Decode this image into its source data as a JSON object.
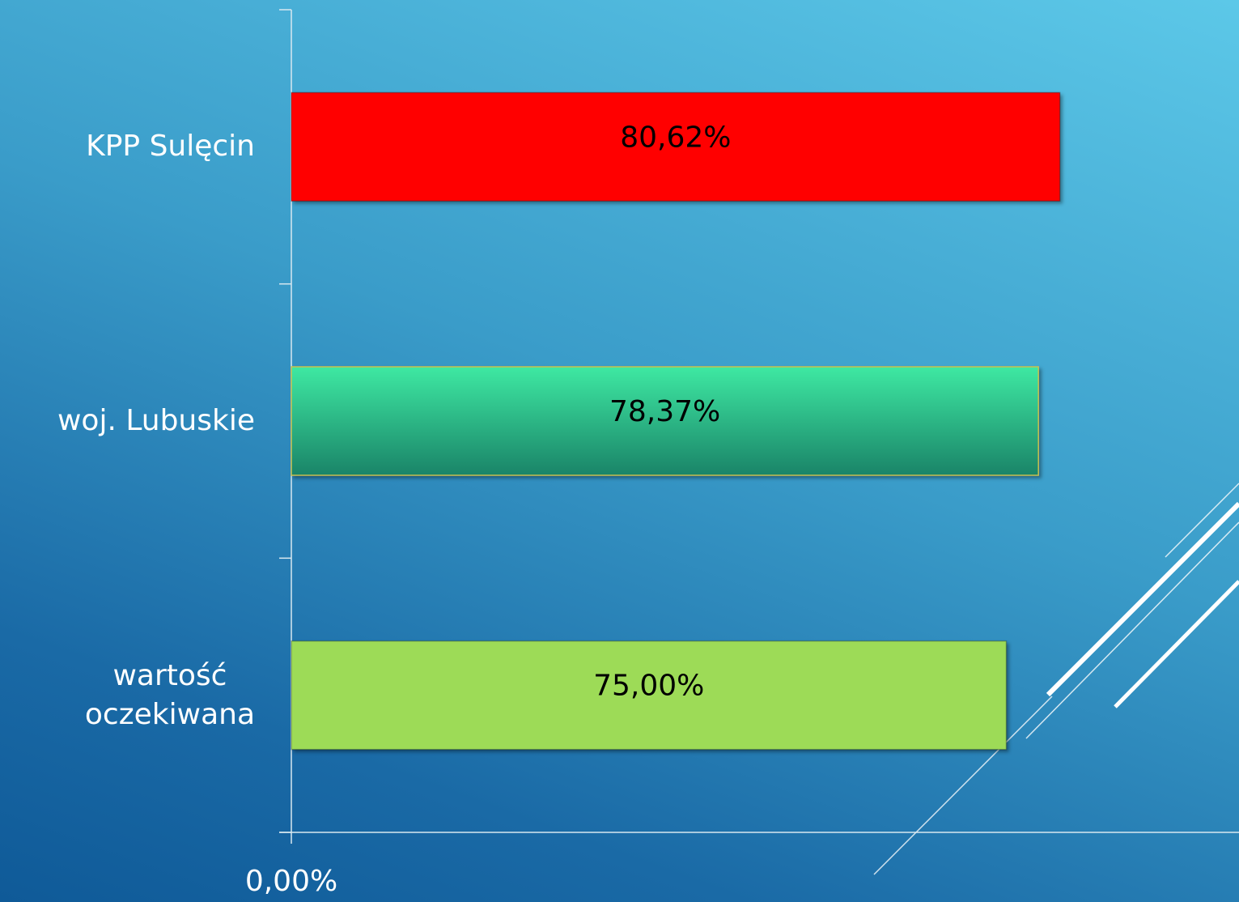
{
  "chart_data": {
    "type": "barh",
    "categories": [
      "KPP Sulęcin",
      "woj. Lubuskie",
      "wartość\noczekiwana"
    ],
    "values": [
      80.62,
      78.37,
      75.0
    ],
    "value_labels": [
      "80,62%",
      "78,37%",
      "75,00%"
    ],
    "colors": [
      "#ff0000",
      "#2fc98f",
      "#9ddb57"
    ],
    "xlim": [
      0,
      100
    ],
    "xticks": [
      {
        "value": 0,
        "label": "0,00%"
      }
    ]
  }
}
